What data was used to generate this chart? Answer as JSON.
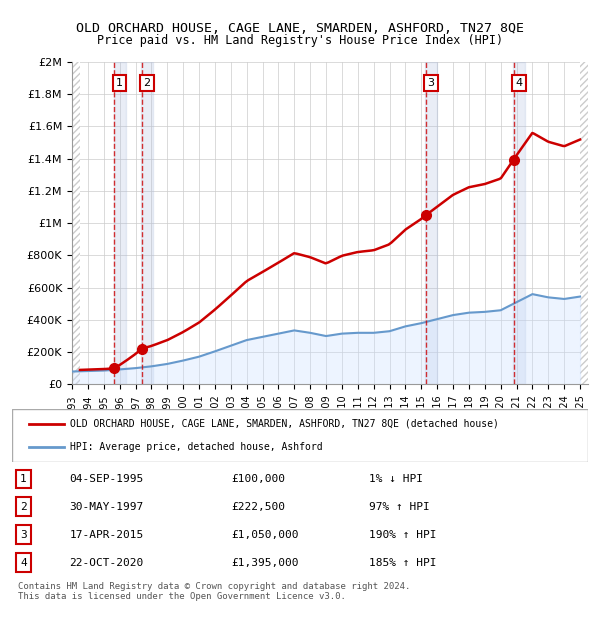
{
  "title": "OLD ORCHARD HOUSE, CAGE LANE, SMARDEN, ASHFORD, TN27 8QE",
  "subtitle": "Price paid vs. HM Land Registry's House Price Index (HPI)",
  "xlim": [
    1993,
    2025.5
  ],
  "ylim": [
    0,
    2000000
  ],
  "yticks": [
    0,
    200000,
    400000,
    600000,
    800000,
    1000000,
    1200000,
    1400000,
    1600000,
    1800000,
    2000000
  ],
  "ytick_labels": [
    "£0",
    "£200K",
    "£400K",
    "£600K",
    "£800K",
    "£1M",
    "£1.2M",
    "£1.4M",
    "£1.6M",
    "£1.8M",
    "£2M"
  ],
  "xticks": [
    1993,
    1994,
    1995,
    1996,
    1997,
    1998,
    1999,
    2000,
    2001,
    2002,
    2003,
    2004,
    2005,
    2006,
    2007,
    2008,
    2009,
    2010,
    2011,
    2012,
    2013,
    2014,
    2015,
    2016,
    2017,
    2018,
    2019,
    2020,
    2021,
    2022,
    2023,
    2024,
    2025
  ],
  "sale_dates": [
    1995.67,
    1997.41,
    2015.29,
    2020.81
  ],
  "sale_prices": [
    100000,
    222500,
    1050000,
    1395000
  ],
  "sale_labels": [
    "1",
    "2",
    "3",
    "4"
  ],
  "sale_color": "#cc0000",
  "hpi_line_color": "#6699cc",
  "hpi_fill_color": "#cce0ff",
  "legend_line1": "OLD ORCHARD HOUSE, CAGE LANE, SMARDEN, ASHFORD, TN27 8QE (detached house)",
  "legend_line2": "HPI: Average price, detached house, Ashford",
  "table_rows": [
    {
      "num": "1",
      "date": "04-SEP-1995",
      "price": "£100,000",
      "hpi": "1% ↓ HPI"
    },
    {
      "num": "2",
      "date": "30-MAY-1997",
      "price": "£222,500",
      "hpi": "97% ↑ HPI"
    },
    {
      "num": "3",
      "date": "17-APR-2015",
      "price": "£1,050,000",
      "hpi": "190% ↑ HPI"
    },
    {
      "num": "4",
      "date": "22-OCT-2020",
      "price": "£1,395,000",
      "hpi": "185% ↑ HPI"
    }
  ],
  "footnote": "Contains HM Land Registry data © Crown copyright and database right 2024.\nThis data is licensed under the Open Government Licence v3.0.",
  "hatch_color": "#cccccc",
  "background_color": "#ffffff",
  "plot_bg_color": "#ffffff",
  "grid_color": "#cccccc"
}
